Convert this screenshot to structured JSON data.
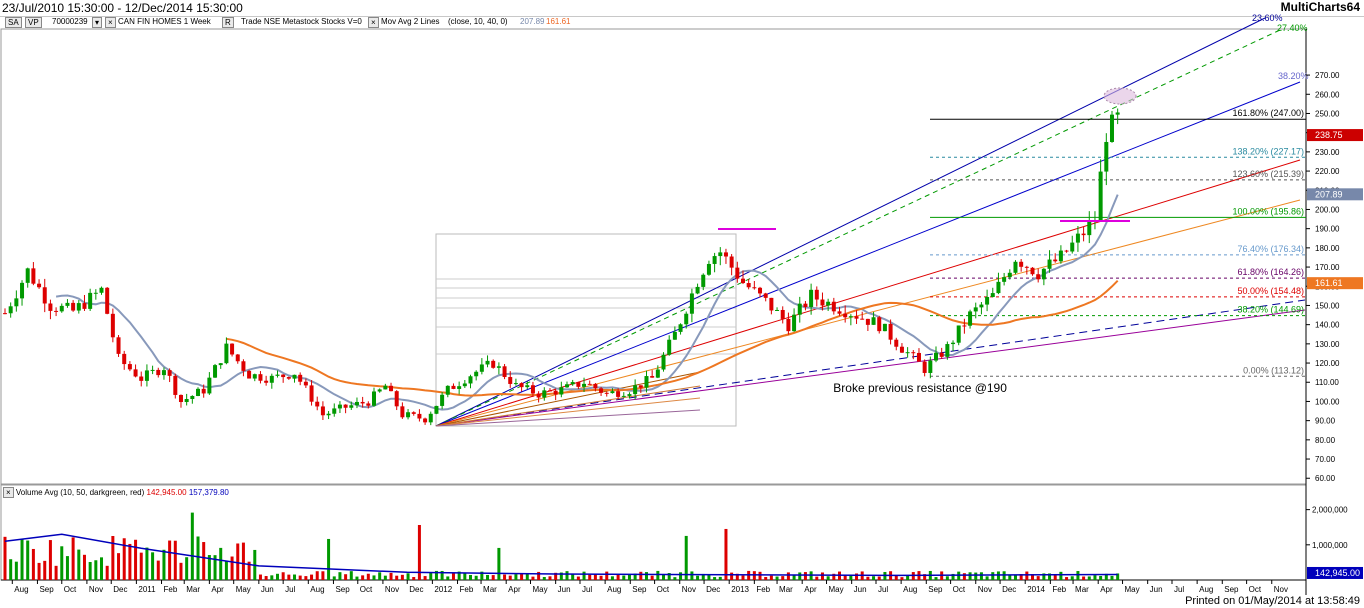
{
  "window": {
    "date_range": "23/Jul/2010 15:30:00 - 12/Dec/2014 15:30:00",
    "app_name": "MultiCharts64"
  },
  "toolbar": {
    "sa": "SA",
    "vp": "VP",
    "symbol_code": "70000239",
    "symbol_label": "CAN FIN HOMES  1 Week",
    "r_btn": "R",
    "feed": "Trade  NSE  Metastock  Stocks  V=0",
    "study": "Mov Avg 2 Lines",
    "study_params": "(close, 10, 40, 0)",
    "ma_fast_value": "207.89",
    "ma_slow_value": "161.61"
  },
  "volume_panel": {
    "legend_label": "Volume Avg",
    "legend_params": "(10, 50, darkgreen, red)",
    "value_red": "142,945.00",
    "value_blue": "157,379.80"
  },
  "footer": {
    "printed": "Printed on 01/May/2014 at 13:58:49"
  },
  "colors": {
    "up": "#009900",
    "down": "#dd0000",
    "ma_fast": "#8899bb",
    "ma_slow": "#ee7722",
    "vol_avg": "#0000bb"
  },
  "chart_data": {
    "type": "candlestick",
    "price_axis": {
      "ylim": [
        57,
        294
      ],
      "ticks": [
        60,
        70,
        80,
        90,
        100,
        110,
        120,
        130,
        140,
        150,
        160,
        170,
        180,
        190,
        200,
        210,
        220,
        230,
        240,
        250,
        260,
        270
      ]
    },
    "volume_axis": {
      "ylim": [
        0,
        2700000
      ],
      "ticks": [
        1000000,
        2000000
      ],
      "tick_labels": [
        "1,000,000",
        "2,000,000"
      ]
    },
    "time_axis": {
      "labels": [
        "Aug",
        "Sep",
        "Oct",
        "Nov",
        "Dec",
        "2011",
        "Feb",
        "Mar",
        "Apr",
        "May",
        "Jun",
        "Jul",
        "Aug",
        "Sep",
        "Oct",
        "Nov",
        "Dec",
        "2012",
        "Feb",
        "Mar",
        "Apr",
        "May",
        "Jun",
        "Jul",
        "Aug",
        "Sep",
        "Oct",
        "Nov",
        "Dec",
        "2013",
        "Feb",
        "Mar",
        "Apr",
        "May",
        "Jun",
        "Jul",
        "Aug",
        "Sep",
        "Oct",
        "Nov",
        "Dec",
        "2014",
        "Feb",
        "Mar",
        "Apr",
        "May",
        "Jun",
        "Jul",
        "Aug",
        "Sep",
        "Oct",
        "Nov"
      ],
      "start": "2010-07-23",
      "end": "2014-12-12"
    },
    "last_price": "238.75",
    "price_labels": {
      "ma_fast": "207.89",
      "ma_slow": "161.61",
      "volume_last": "142,945.00"
    },
    "price_path": [
      [
        "2010-07-23",
        146
      ],
      [
        "2010-08-20",
        168
      ],
      [
        "2010-09-17",
        150
      ],
      [
        "2010-10-15",
        147
      ],
      [
        "2010-11-19",
        158
      ],
      [
        "2010-12-10",
        122
      ],
      [
        "2011-01-07",
        112
      ],
      [
        "2011-02-04",
        118
      ],
      [
        "2011-02-25",
        100
      ],
      [
        "2011-03-25",
        106
      ],
      [
        "2011-04-22",
        128
      ],
      [
        "2011-05-20",
        114
      ],
      [
        "2011-06-17",
        112
      ],
      [
        "2011-07-15",
        115
      ],
      [
        "2011-08-19",
        93
      ],
      [
        "2011-09-16",
        97
      ],
      [
        "2011-10-14",
        100
      ],
      [
        "2011-11-04",
        108
      ],
      [
        "2011-11-25",
        93
      ],
      [
        "2011-12-23",
        91
      ],
      [
        "2012-01-20",
        106
      ],
      [
        "2012-02-17",
        114
      ],
      [
        "2012-03-16",
        120
      ],
      [
        "2012-04-13",
        108
      ],
      [
        "2012-05-11",
        104
      ],
      [
        "2012-06-08",
        106
      ],
      [
        "2012-07-06",
        110
      ],
      [
        "2012-08-03",
        104
      ],
      [
        "2012-08-31",
        106
      ],
      [
        "2012-09-28",
        112
      ],
      [
        "2012-10-26",
        135
      ],
      [
        "2012-11-23",
        163
      ],
      [
        "2012-12-07",
        175
      ],
      [
        "2012-12-21",
        178
      ],
      [
        "2013-01-18",
        162
      ],
      [
        "2013-02-15",
        152
      ],
      [
        "2013-03-15",
        140
      ],
      [
        "2013-04-12",
        155
      ],
      [
        "2013-05-10",
        150
      ],
      [
        "2013-06-07",
        145
      ],
      [
        "2013-07-05",
        140
      ],
      [
        "2013-08-02",
        128
      ],
      [
        "2013-08-30",
        117
      ],
      [
        "2013-09-27",
        128
      ],
      [
        "2013-10-25",
        145
      ],
      [
        "2013-11-22",
        155
      ],
      [
        "2013-12-20",
        175
      ],
      [
        "2014-01-17",
        167
      ],
      [
        "2014-02-14",
        175
      ],
      [
        "2014-03-14",
        188
      ],
      [
        "2014-03-28",
        195
      ],
      [
        "2014-04-11",
        240
      ],
      [
        "2014-04-25",
        247
      ]
    ],
    "series": [
      {
        "name": "Volume Avg",
        "points": [
          [
            "2010-07-23",
            1100000
          ],
          [
            "2010-10-01",
            1300000
          ],
          [
            "2011-01-07",
            900000
          ],
          [
            "2011-06-01",
            400000
          ],
          [
            "2011-12-01",
            220000
          ],
          [
            "2012-06-01",
            170000
          ],
          [
            "2013-01-01",
            150000
          ],
          [
            "2013-08-01",
            130000
          ],
          [
            "2014-04-25",
            157380
          ]
        ]
      }
    ],
    "annotations": [
      {
        "text": "Broke previous resistance @190",
        "date": "2013-08-16",
        "price": 105
      }
    ],
    "fib_levels": [
      {
        "label": "161.80% (247.00)",
        "price": 247.0,
        "color": "#000000"
      },
      {
        "label": "138.20% (227.17)",
        "price": 227.17,
        "color": "#2a8aa0"
      },
      {
        "label": "123.60% (215.39)",
        "price": 215.39,
        "color": "#555555"
      },
      {
        "label": "100.00% (195.86)",
        "price": 195.86,
        "color": "#009900"
      },
      {
        "label": "76.40% (176.34)",
        "price": 176.34,
        "color": "#6699cc"
      },
      {
        "label": "61.80% (164.26)",
        "price": 164.26,
        "color": "#660066"
      },
      {
        "label": "50.00% (154.48)",
        "price": 154.48,
        "color": "#dd0000"
      },
      {
        "label": "38.20% (144.69)",
        "price": 144.69,
        "color": "#009900"
      },
      {
        "label": "0.00% (113.12)",
        "price": 113.12,
        "color": "#666666"
      }
    ],
    "fan_labels": [
      {
        "label": "23.60%",
        "color": "#000099"
      },
      {
        "label": "27.40%",
        "color": "#009900"
      },
      {
        "label": "38.20%",
        "color": "#6666cc"
      }
    ]
  }
}
